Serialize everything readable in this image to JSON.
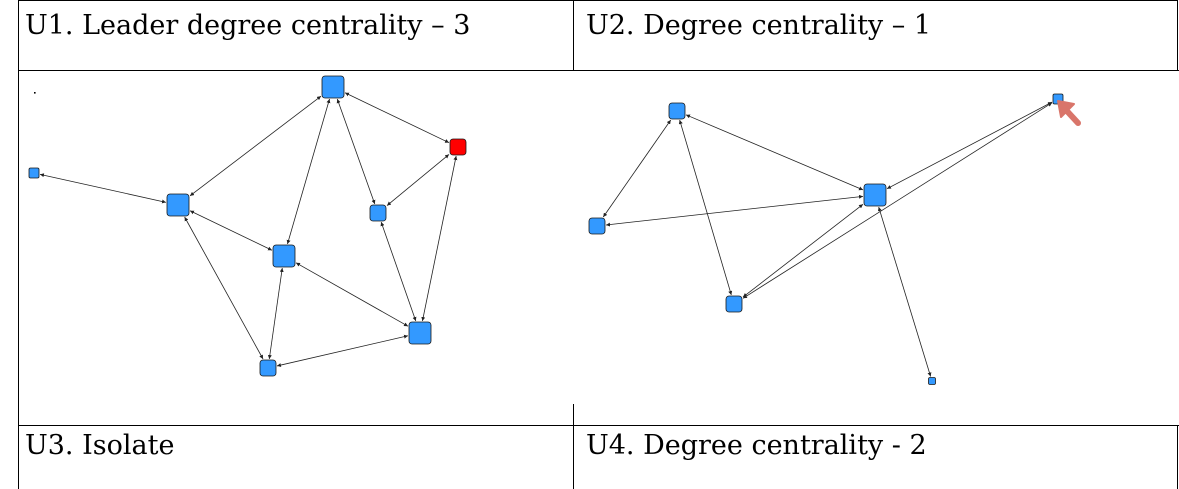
{
  "labels": {
    "u1": "U1. Leader degree centrality – 3",
    "u2": "U2. Degree centrality – 1",
    "u3": "U3. Isolate",
    "u4": "U4. Degree centrality - 2"
  },
  "colors": {
    "node": "#3399ff",
    "leader": "#ff0000",
    "arrow_marker": "#d9756a",
    "line": "#000000"
  },
  "graph_left": {
    "nodes": [
      {
        "id": "A",
        "size": "small",
        "color": "node"
      },
      {
        "id": "B",
        "size": "large",
        "color": "node"
      },
      {
        "id": "C",
        "size": "large",
        "color": "node"
      },
      {
        "id": "D",
        "size": "large",
        "color": "node"
      },
      {
        "id": "E",
        "size": "medium",
        "color": "node"
      },
      {
        "id": "F",
        "size": "medium",
        "color": "leader"
      },
      {
        "id": "G",
        "size": "large",
        "color": "node"
      },
      {
        "id": "H",
        "size": "medium",
        "color": "node"
      }
    ],
    "edges": [
      [
        "A",
        "B"
      ],
      [
        "B",
        "C"
      ],
      [
        "B",
        "D"
      ],
      [
        "B",
        "H"
      ],
      [
        "C",
        "D"
      ],
      [
        "C",
        "E"
      ],
      [
        "C",
        "F"
      ],
      [
        "D",
        "H"
      ],
      [
        "D",
        "G"
      ],
      [
        "E",
        "F"
      ],
      [
        "E",
        "G"
      ],
      [
        "F",
        "G"
      ],
      [
        "G",
        "H"
      ]
    ]
  },
  "graph_right": {
    "nodes": [
      {
        "id": "P",
        "size": "medium",
        "color": "node"
      },
      {
        "id": "Q",
        "size": "medium",
        "color": "node"
      },
      {
        "id": "R",
        "size": "large",
        "color": "node"
      },
      {
        "id": "S",
        "size": "medium",
        "color": "node"
      },
      {
        "id": "T",
        "size": "small",
        "color": "node"
      },
      {
        "id": "U",
        "size": "tiny",
        "color": "node"
      }
    ],
    "edges": [
      [
        "P",
        "Q"
      ],
      [
        "P",
        "R"
      ],
      [
        "P",
        "S"
      ],
      [
        "Q",
        "R"
      ],
      [
        "R",
        "S"
      ],
      [
        "R",
        "T"
      ],
      [
        "R",
        "U"
      ],
      [
        "S",
        "T"
      ]
    ]
  }
}
